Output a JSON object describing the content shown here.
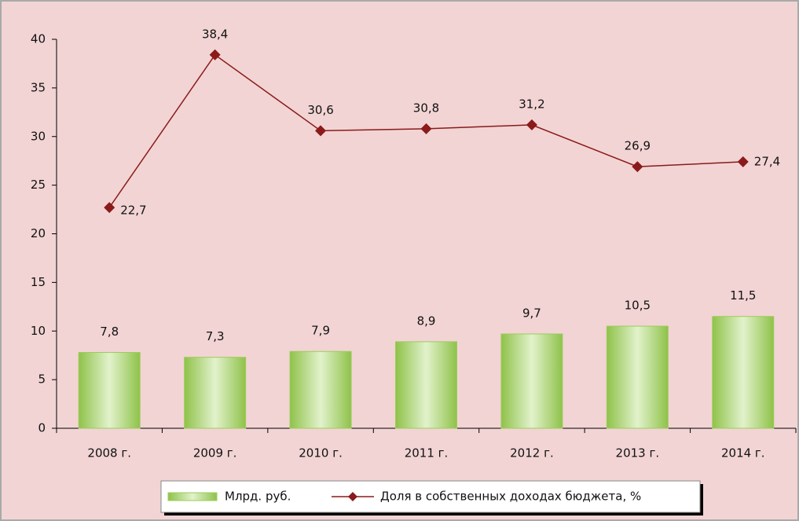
{
  "chart_data": {
    "type": "combo",
    "categories": [
      "2008 г.",
      "2009 г.",
      "2010 г.",
      "2011 г.",
      "2012 г.",
      "2013 г.",
      "2014 г."
    ],
    "series": [
      {
        "name": "Млрд. руб.",
        "type": "bar",
        "color": "#9ccc5a",
        "values": [
          7.8,
          7.3,
          7.9,
          8.9,
          9.7,
          10.5,
          11.5
        ],
        "value_labels": [
          "7,8",
          "7,3",
          "7,9",
          "8,9",
          "9,7",
          "10,5",
          "11,5"
        ]
      },
      {
        "name": "Доля в собственных доходах бюджета, %",
        "type": "line",
        "color": "#8b1a1a",
        "values": [
          22.7,
          38.4,
          30.6,
          30.8,
          31.2,
          26.9,
          27.4
        ],
        "value_labels": [
          "22,7",
          "38,4",
          "30,6",
          "30,8",
          "31,2",
          "26,9",
          "27,4"
        ]
      }
    ],
    "ylim": [
      0,
      40
    ],
    "yticks": [
      0,
      5,
      10,
      15,
      20,
      25,
      30,
      35,
      40
    ],
    "legend": "bottom"
  }
}
